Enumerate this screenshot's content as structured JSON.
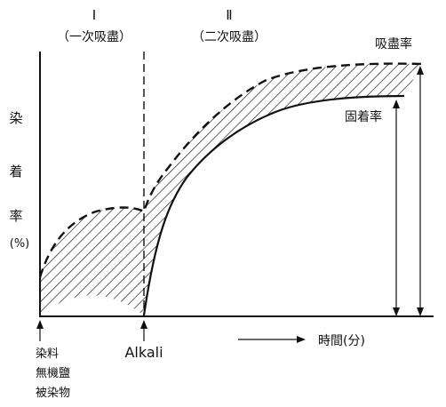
{
  "phases": {
    "phase1_numeral": "Ⅰ",
    "phase1_label": "（一次吸盡）",
    "phase2_numeral": "Ⅱ",
    "phase2_label": "（二次吸盡）"
  },
  "y_axis": {
    "char1": "染",
    "char2": "着",
    "char3": "率",
    "unit": "(%)"
  },
  "curves": {
    "exhaustion_label": "吸盡率",
    "fixation_label": "固着率"
  },
  "x_axis": {
    "label": "時間(分)"
  },
  "markers": {
    "start_line1": "染料",
    "start_line2": "無機鹽",
    "start_line3": "被染物",
    "alkali": "Alkali"
  },
  "colors": {
    "ink": "#111111",
    "background": "#ffffff",
    "hatch_gap": "#6a6a6a"
  }
}
